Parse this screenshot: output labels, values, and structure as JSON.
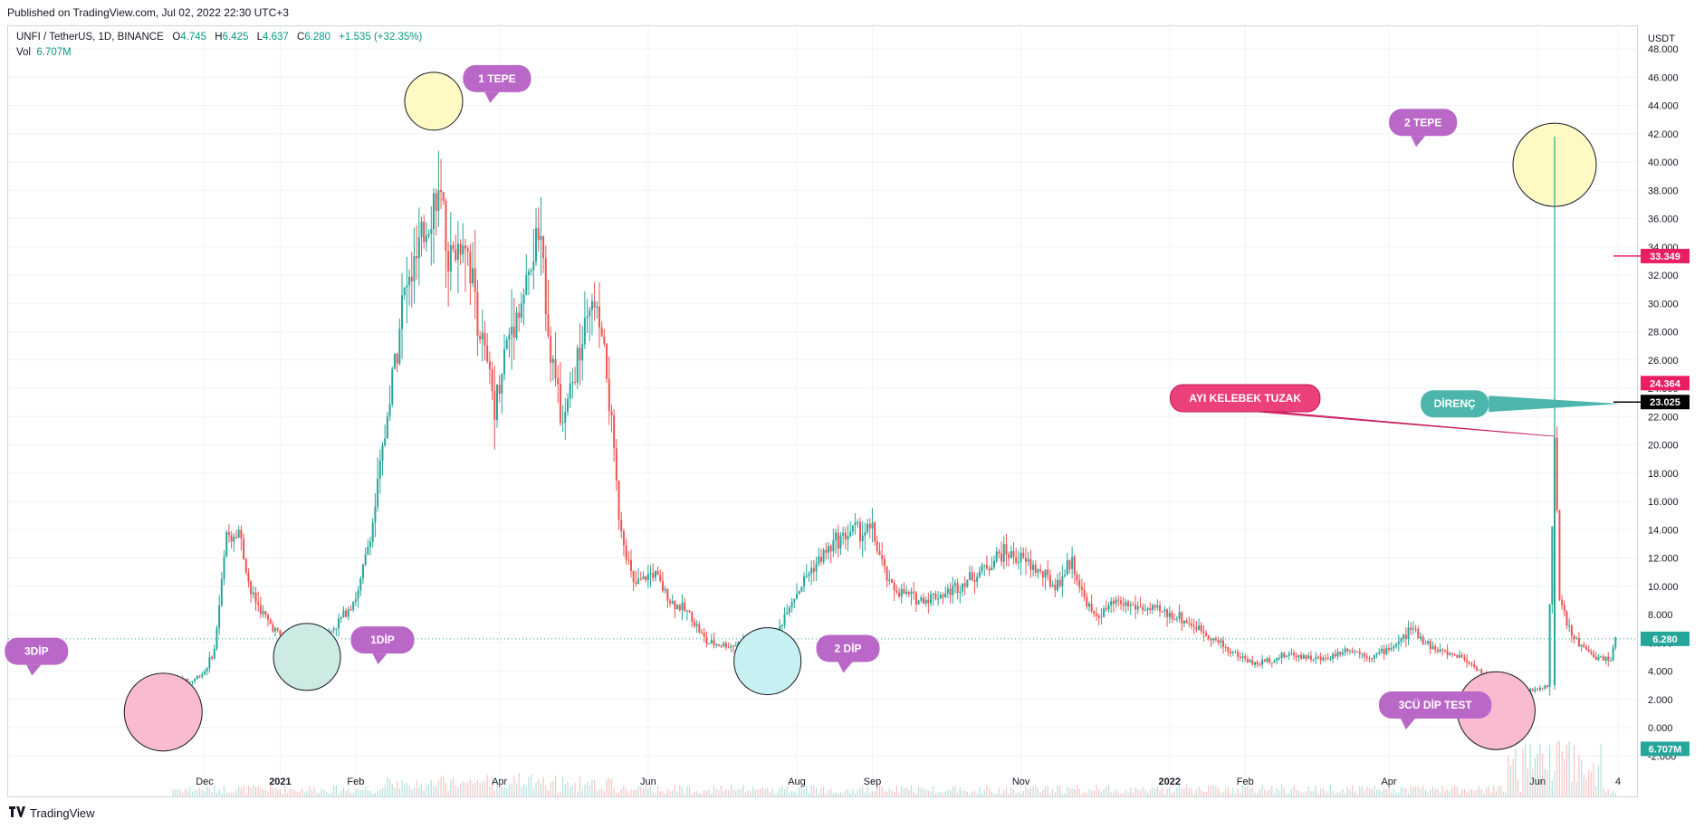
{
  "header": {
    "published": "Published on TradingView.com, Jul 02, 2022 22:30 UTC+3"
  },
  "legend": {
    "symbol": "UNFI / TetherUS, 1D, BINANCE",
    "o_label": "O",
    "o_value": "4.745",
    "h_label": "H",
    "h_value": "6.425",
    "l_label": "L",
    "l_value": "4.637",
    "c_label": "C",
    "c_value": "6.280",
    "change": "+1.535 (+32.35%)",
    "vol_label": "Vol",
    "vol_value": "6.707M"
  },
  "footer": {
    "brand": "TradingView"
  },
  "colors": {
    "up": "#26a69a",
    "down": "#ef5350",
    "grid": "#f0f3fa",
    "text": "#131722",
    "callout_purple": "#ba68c8",
    "callout_pink": "#ec407a",
    "callout_teal": "#4db6ac",
    "circle_yellow": "#fff9c4",
    "circle_pink": "#f8bbd0",
    "circle_green": "#cdebe2",
    "circle_cyan": "#c7f0f2"
  },
  "chart_data": {
    "type": "candlestick",
    "title": "UNFI / TetherUS, 1D, BINANCE",
    "unit": "USDT",
    "ylim": [
      -2,
      48
    ],
    "y_ticks": [
      "-2.000",
      "0.000",
      "2.000",
      "4.000",
      "6.000",
      "8.000",
      "10.000",
      "12.000",
      "14.000",
      "16.000",
      "18.000",
      "20.000",
      "22.000",
      "24.000",
      "26.000",
      "28.000",
      "30.000",
      "32.000",
      "34.000",
      "36.000",
      "38.000",
      "40.000",
      "42.000",
      "44.000",
      "46.000",
      "48.000"
    ],
    "x_ticks": [
      {
        "label": "Dec",
        "bold": false
      },
      {
        "label": "2021",
        "bold": true
      },
      {
        "label": "Feb",
        "bold": false
      },
      {
        "label": "Apr",
        "bold": false
      },
      {
        "label": "Jun",
        "bold": false
      },
      {
        "label": "Aug",
        "bold": false
      },
      {
        "label": "Sep",
        "bold": false
      },
      {
        "label": "Nov",
        "bold": false
      },
      {
        "label": "2022",
        "bold": true
      },
      {
        "label": "Feb",
        "bold": false
      },
      {
        "label": "Apr",
        "bold": false
      },
      {
        "label": "Jun",
        "bold": false
      },
      {
        "label": "4",
        "bold": false
      }
    ],
    "x_tick_dates": [
      "2020-12-01",
      "2021-01-01",
      "2021-02-01",
      "2021-04-01",
      "2021-06-01",
      "2021-08-01",
      "2021-09-01",
      "2021-11-01",
      "2022-01-01",
      "2022-02-01",
      "2022-04-01",
      "2022-06-01",
      "2022-07-04"
    ],
    "date_range": [
      "2020-11-18",
      "2022-07-07"
    ],
    "price_path": [
      [
        "2020-11-18",
        1.3
      ],
      [
        "2020-11-20",
        3.5
      ],
      [
        "2020-11-25",
        3.2
      ],
      [
        "2020-12-01",
        4.0
      ],
      [
        "2020-12-05",
        5.5
      ],
      [
        "2020-12-10",
        13.5
      ],
      [
        "2020-12-15",
        14.0
      ],
      [
        "2020-12-20",
        9.5
      ],
      [
        "2020-12-27",
        7.5
      ],
      [
        "2021-01-01",
        6.5
      ],
      [
        "2021-01-10",
        5.2
      ],
      [
        "2021-01-17",
        5.9
      ],
      [
        "2021-01-25",
        7.5
      ],
      [
        "2021-02-02",
        9.5
      ],
      [
        "2021-02-08",
        14.5
      ],
      [
        "2021-02-14",
        22
      ],
      [
        "2021-02-20",
        30
      ],
      [
        "2021-02-28",
        34
      ],
      [
        "2021-03-06",
        38
      ],
      [
        "2021-03-12",
        33
      ],
      [
        "2021-03-18",
        35
      ],
      [
        "2021-03-24",
        28
      ],
      [
        "2021-03-30",
        23
      ],
      [
        "2021-04-05",
        28
      ],
      [
        "2021-04-12",
        31
      ],
      [
        "2021-04-17",
        35
      ],
      [
        "2021-04-22",
        27
      ],
      [
        "2021-04-27",
        21
      ],
      [
        "2021-05-03",
        26
      ],
      [
        "2021-05-10",
        30
      ],
      [
        "2021-05-15",
        25
      ],
      [
        "2021-05-20",
        15
      ],
      [
        "2021-05-26",
        10
      ],
      [
        "2021-06-03",
        11
      ],
      [
        "2021-06-10",
        9
      ],
      [
        "2021-06-18",
        8
      ],
      [
        "2021-06-25",
        6
      ],
      [
        "2021-07-05",
        5.8
      ],
      [
        "2021-07-15",
        6.3
      ],
      [
        "2021-07-21",
        5.2
      ],
      [
        "2021-07-28",
        8.5
      ],
      [
        "2021-08-06",
        11
      ],
      [
        "2021-08-16",
        13
      ],
      [
        "2021-08-24",
        14
      ],
      [
        "2021-09-01",
        13.8
      ],
      [
        "2021-09-08",
        10
      ],
      [
        "2021-09-20",
        9
      ],
      [
        "2021-10-01",
        9.5
      ],
      [
        "2021-10-15",
        11
      ],
      [
        "2021-10-25",
        12.5
      ],
      [
        "2021-11-05",
        11.5
      ],
      [
        "2021-11-15",
        10
      ],
      [
        "2021-11-22",
        11.8
      ],
      [
        "2021-11-26",
        9.5
      ],
      [
        "2021-12-01",
        7.8
      ],
      [
        "2021-12-10",
        8.8
      ],
      [
        "2021-12-20",
        8.5
      ],
      [
        "2022-01-05",
        7.8
      ],
      [
        "2022-01-15",
        6.8
      ],
      [
        "2022-01-25",
        5.5
      ],
      [
        "2022-02-05",
        4.5
      ],
      [
        "2022-02-20",
        5.2
      ],
      [
        "2022-03-05",
        4.8
      ],
      [
        "2022-03-15",
        5.6
      ],
      [
        "2022-03-25",
        5.0
      ],
      [
        "2022-04-05",
        6.0
      ],
      [
        "2022-04-10",
        7.0
      ],
      [
        "2022-04-20",
        5.5
      ],
      [
        "2022-05-01",
        5.0
      ],
      [
        "2022-05-12",
        3.5
      ],
      [
        "2022-05-25",
        2.5
      ],
      [
        "2022-06-01",
        2.7
      ],
      [
        "2022-06-05",
        3.0
      ],
      [
        "2022-06-08",
        20.5
      ],
      [
        "2022-06-10",
        9
      ],
      [
        "2022-06-15",
        6.5
      ],
      [
        "2022-06-22",
        5.2
      ],
      [
        "2022-07-01",
        4.8
      ],
      [
        "2022-07-03",
        6.3
      ]
    ],
    "spike": {
      "date": "2022-06-08",
      "high": 41.8,
      "open": 3.0,
      "close": 20.5
    },
    "overlay_lines": [
      {
        "value": 6.28,
        "label": "6.280",
        "color": "#26a69a",
        "style": "dotted"
      }
    ],
    "price_markers": [
      {
        "value": 33.349,
        "label": "33.349",
        "color": "#e91e63",
        "tick": true
      },
      {
        "value": 24.364,
        "label": "24.364",
        "color": "#e91e63",
        "tick": false
      },
      {
        "value": 23.025,
        "label": "23.025",
        "color": "#000000",
        "tick": true
      },
      {
        "value": 6.28,
        "label": "6.280",
        "color": "#26a69a",
        "tick": false
      },
      {
        "value": -1.5,
        "label": "6.707M",
        "color": "#26a69a",
        "tick": false
      }
    ],
    "annotations": [
      {
        "kind": "circle",
        "date": "2021-03-05",
        "value": 44.3,
        "fill": "circle_yellow"
      },
      {
        "kind": "circle",
        "date": "2022-06-08",
        "value": 39.8,
        "fill": "circle_yellow"
      },
      {
        "kind": "circle",
        "date": "2020-11-14",
        "value": 1.1,
        "fill": "circle_pink"
      },
      {
        "kind": "circle",
        "date": "2021-01-12",
        "value": 5.0,
        "fill": "circle_green"
      },
      {
        "kind": "circle",
        "date": "2021-07-20",
        "value": 4.7,
        "fill": "circle_cyan"
      },
      {
        "kind": "circle",
        "date": "2022-05-15",
        "value": 1.2,
        "fill": "circle_pink"
      },
      {
        "kind": "callout",
        "text": "1 TEPE",
        "date": "2021-03-31",
        "value": 45.9,
        "color": "callout_purple"
      },
      {
        "kind": "callout",
        "text": "2 TEPE",
        "date": "2022-04-15",
        "value": 42.8,
        "color": "callout_purple"
      },
      {
        "kind": "callout",
        "text": "3DİP",
        "date": "2020-09-23",
        "value": 5.4,
        "color": "callout_purple"
      },
      {
        "kind": "callout",
        "text": "1DİP",
        "date": "2021-02-12",
        "value": 6.2,
        "color": "callout_purple"
      },
      {
        "kind": "callout",
        "text": "2 DİP",
        "date": "2021-08-22",
        "value": 5.6,
        "color": "callout_purple"
      },
      {
        "kind": "callout",
        "text": "3CÜ DİP TEST",
        "date": "2022-04-20",
        "value": 1.6,
        "color": "callout_purple"
      },
      {
        "kind": "callout",
        "text": "AYI KELEBEK TUZAK",
        "date": "2022-02-01",
        "value": 23.3,
        "color": "callout_pink"
      },
      {
        "kind": "callout",
        "text": "DİRENÇ",
        "date": "2022-04-28",
        "value": 22.9,
        "color": "callout_teal"
      }
    ]
  }
}
